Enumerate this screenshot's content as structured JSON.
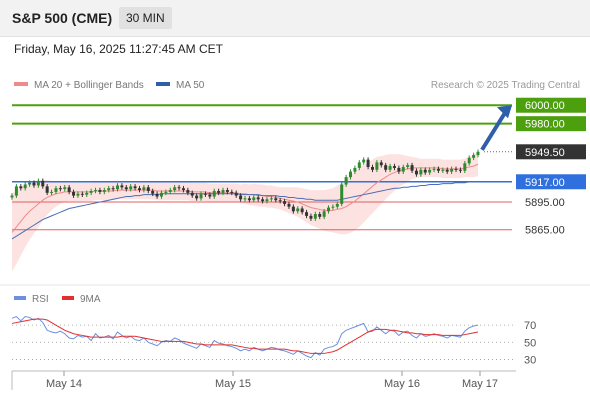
{
  "header": {
    "title": "S&P 500 (CME)",
    "timeframe": "30 MIN"
  },
  "datetime": "Friday, May 16, 2025 11:27:45 AM CET",
  "legend": {
    "ma20_bb": "MA 20 + Bollinger Bands",
    "ma50": "MA 50",
    "credit": "Research © 2025 Trading Central"
  },
  "rsi_legend": {
    "rsi": "RSI",
    "ma9": "9MA"
  },
  "colors": {
    "bull": "#2e8b2e",
    "bear": "#333333",
    "target": "#4ca00e",
    "pivot": "#2f6fde",
    "support": "#e06060",
    "ma20": "#f08a8a",
    "ma50": "#4a6fb5",
    "bb_fill": "#fde2e2",
    "arrow": "#2f5fa8",
    "rsi": "#6d8fe0",
    "rsi_ma": "#e03030"
  },
  "chart_data": [
    {
      "type": "candlestick",
      "title": "S&P 500 (CME) 30 MIN",
      "x_labels": [
        "May 14",
        "May 15",
        "May 16",
        "May 17"
      ],
      "ylim": [
        5830,
        6010
      ],
      "levels": [
        {
          "value": 6000.0,
          "label": "6000.00",
          "kind": "target"
        },
        {
          "value": 5980.0,
          "label": "5980.00",
          "kind": "target"
        },
        {
          "value": 5949.5,
          "label": "5949.50",
          "kind": "last"
        },
        {
          "value": 5917.0,
          "label": "5917.00",
          "kind": "pivot"
        },
        {
          "value": 5895.0,
          "label": "5895.00",
          "kind": "support"
        },
        {
          "value": 5865.0,
          "label": "5865.00",
          "kind": "support"
        }
      ],
      "close": [
        5902,
        5912,
        5910,
        5914,
        5916,
        5913,
        5918,
        5912,
        5905,
        5906,
        5910,
        5909,
        5911,
        5906,
        5902,
        5904,
        5903,
        5905,
        5907,
        5908,
        5906,
        5908,
        5910,
        5909,
        5913,
        5911,
        5909,
        5912,
        5910,
        5908,
        5911,
        5907,
        5904,
        5901,
        5905,
        5906,
        5908,
        5911,
        5910,
        5908,
        5905,
        5902,
        5899,
        5904,
        5903,
        5901,
        5907,
        5905,
        5908,
        5906,
        5905,
        5902,
        5898,
        5899,
        5897,
        5900,
        5898,
        5896,
        5898,
        5899,
        5897,
        5896,
        5893,
        5890,
        5885,
        5888,
        5884,
        5880,
        5877,
        5882,
        5879,
        5885,
        5889,
        5890,
        5893,
        5914,
        5922,
        5928,
        5932,
        5938,
        5941,
        5933,
        5930,
        5938,
        5935,
        5930,
        5934,
        5932,
        5928,
        5933,
        5935,
        5929,
        5925,
        5930,
        5927,
        5930,
        5931,
        5929,
        5930,
        5928,
        5931,
        5930,
        5929,
        5937,
        5943,
        5946,
        5949.5
      ],
      "ma20": [
        5862,
        5868,
        5874,
        5880,
        5885,
        5889,
        5893,
        5897,
        5900,
        5902,
        5904,
        5905,
        5906,
        5906,
        5906,
        5906,
        5906,
        5906,
        5906,
        5907,
        5907,
        5907,
        5907,
        5907,
        5908,
        5908,
        5908,
        5908,
        5908,
        5908,
        5908,
        5908,
        5908,
        5907,
        5907,
        5907,
        5907,
        5907,
        5907,
        5907,
        5907,
        5906,
        5906,
        5906,
        5906,
        5905,
        5905,
        5905,
        5905,
        5905,
        5905,
        5905,
        5904,
        5904,
        5903,
        5903,
        5902,
        5902,
        5901,
        5901,
        5900,
        5899,
        5898,
        5897,
        5896,
        5895,
        5893,
        5891,
        5889,
        5888,
        5887,
        5886,
        5886,
        5886,
        5887,
        5888,
        5890,
        5893,
        5896,
        5900,
        5904,
        5908,
        5912,
        5916,
        5919,
        5922,
        5925,
        5927,
        5929,
        5930,
        5931,
        5932,
        5932,
        5932,
        5932,
        5932,
        5932,
        5932,
        5931,
        5931,
        5931,
        5931,
        5931,
        5932,
        5933,
        5934,
        5936
      ],
      "ma50": [
        5855,
        5858,
        5861,
        5864,
        5867,
        5870,
        5873,
        5876,
        5878,
        5880,
        5882,
        5884,
        5886,
        5888,
        5889,
        5890,
        5891,
        5892,
        5893,
        5894,
        5895,
        5896,
        5897,
        5898,
        5899,
        5900,
        5901,
        5901,
        5902,
        5902,
        5903,
        5903,
        5903,
        5903,
        5904,
        5904,
        5904,
        5904,
        5904,
        5904,
        5904,
        5904,
        5904,
        5904,
        5904,
        5904,
        5904,
        5904,
        5904,
        5904,
        5904,
        5904,
        5903,
        5903,
        5903,
        5903,
        5903,
        5902,
        5902,
        5902,
        5902,
        5901,
        5901,
        5900,
        5900,
        5899,
        5899,
        5898,
        5898,
        5897,
        5897,
        5897,
        5897,
        5897,
        5897,
        5898,
        5899,
        5900,
        5901,
        5902,
        5903,
        5904,
        5905,
        5906,
        5907,
        5908,
        5909,
        5910,
        5910,
        5911,
        5911,
        5912,
        5912,
        5913,
        5913,
        5914,
        5914,
        5914,
        5915,
        5915,
        5915,
        5916,
        5916,
        5916,
        5917,
        5917,
        5917
      ],
      "bb_width": [
        42,
        40,
        37,
        34,
        31,
        28,
        25,
        22,
        19,
        16,
        14,
        12,
        11,
        10,
        10,
        10,
        10,
        10,
        10,
        10,
        10,
        10,
        10,
        10,
        10,
        10,
        10,
        10,
        10,
        10,
        10,
        10,
        10,
        10,
        10,
        10,
        10,
        10,
        10,
        10,
        10,
        10,
        10,
        10,
        10,
        10,
        10,
        10,
        10,
        10,
        10,
        10,
        10,
        11,
        11,
        12,
        12,
        12,
        12,
        12,
        12,
        12,
        13,
        14,
        15,
        16,
        17,
        18,
        19,
        20,
        21,
        22,
        23,
        24,
        26,
        28,
        30,
        31,
        32,
        32,
        31,
        30,
        29,
        28,
        26,
        24,
        22,
        20,
        18,
        16,
        14,
        12,
        11,
        10,
        10,
        10,
        10,
        10,
        10,
        10,
        10,
        10,
        10,
        10,
        11,
        12,
        13
      ]
    },
    {
      "type": "line",
      "title": "RSI",
      "x_labels": [
        "May 14",
        "May 15",
        "May 16",
        "May 17"
      ],
      "y_ticks": [
        70,
        50,
        30
      ],
      "ylim": [
        20,
        90
      ],
      "series": [
        {
          "name": "RSI",
          "values": [
            78,
            80,
            75,
            80,
            79,
            76,
            78,
            73,
            64,
            62,
            61,
            63,
            60,
            55,
            54,
            58,
            56,
            57,
            52,
            60,
            55,
            56,
            58,
            54,
            62,
            58,
            55,
            57,
            53,
            52,
            55,
            50,
            48,
            46,
            50,
            52,
            51,
            55,
            53,
            49,
            47,
            45,
            43,
            48,
            46,
            44,
            52,
            49,
            48,
            46,
            45,
            43,
            40,
            42,
            40,
            44,
            42,
            40,
            42,
            44,
            43,
            41,
            40,
            38,
            36,
            40,
            37,
            34,
            32,
            38,
            35,
            42,
            44,
            45,
            48,
            60,
            64,
            66,
            68,
            70,
            72,
            62,
            63,
            68,
            64,
            60,
            64,
            63,
            58,
            62,
            63,
            58,
            55,
            60,
            57,
            58,
            60,
            58,
            57,
            55,
            58,
            57,
            56,
            63,
            67,
            69,
            70
          ]
        },
        {
          "name": "9MA",
          "values": [
            72,
            73,
            74,
            75,
            76,
            77,
            77,
            77,
            76,
            73,
            70,
            67,
            64,
            62,
            60,
            59,
            58,
            57,
            56,
            56,
            56,
            56,
            56,
            56,
            56,
            57,
            57,
            57,
            57,
            56,
            55,
            54,
            53,
            52,
            51,
            51,
            51,
            51,
            51,
            51,
            50,
            49,
            48,
            48,
            47,
            47,
            47,
            47,
            47,
            47,
            47,
            46,
            45,
            44,
            43,
            43,
            42,
            42,
            42,
            42,
            42,
            42,
            42,
            41,
            40,
            40,
            39,
            38,
            37,
            37,
            37,
            37,
            38,
            39,
            41,
            44,
            47,
            50,
            53,
            56,
            59,
            62,
            64,
            65,
            65,
            65,
            64,
            64,
            63,
            62,
            61,
            61,
            60,
            60,
            59,
            59,
            59,
            59,
            58,
            58,
            58,
            58,
            58,
            59,
            60,
            61,
            62
          ]
        }
      ]
    }
  ]
}
